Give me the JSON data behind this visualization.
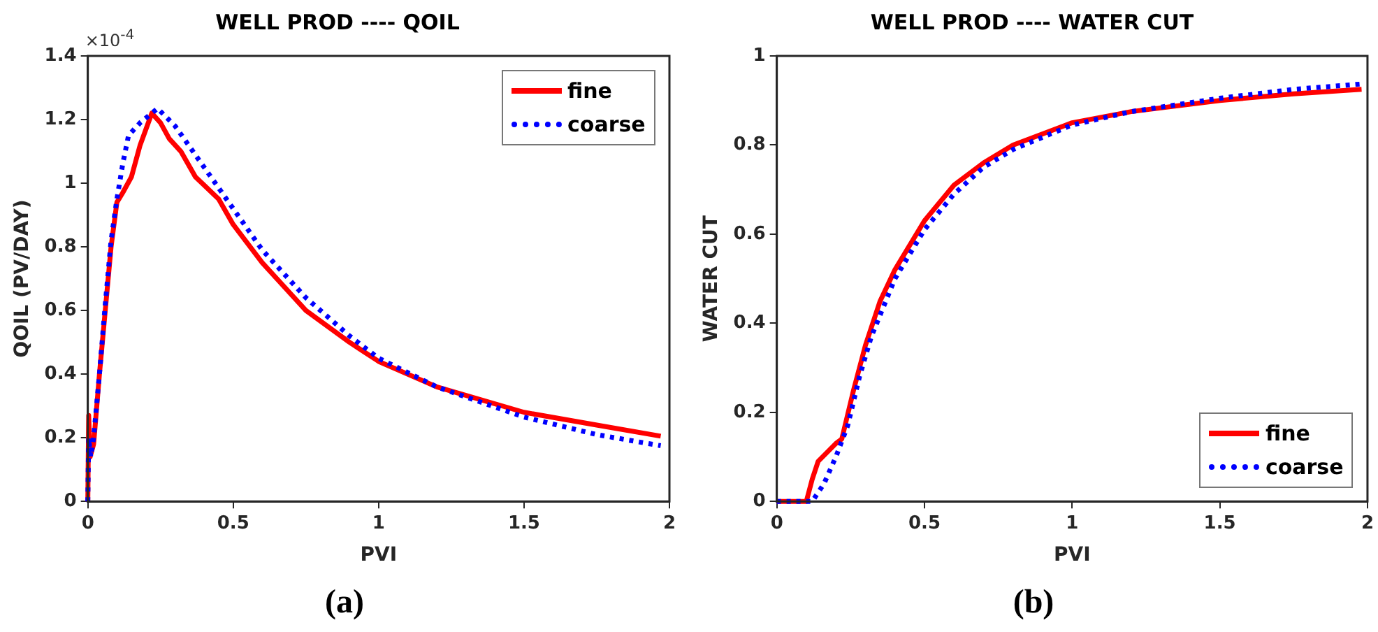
{
  "chart_data": [
    {
      "type": "line",
      "title": "WELL PROD ---- QOIL",
      "xlabel": "PVI",
      "ylabel": "QOIL (PV/DAY)",
      "annotations": [
        "×10$^{-4}$",
        "(a)"
      ],
      "xlim": [
        0,
        2
      ],
      "xticks": [
        0,
        0.5,
        1,
        1.5,
        2
      ],
      "ylim": [
        0,
        1.4
      ],
      "yticks": [
        0,
        0.2,
        0.4,
        0.6,
        0.8,
        1,
        1.2,
        1.4
      ],
      "grid": false,
      "legend": "top right",
      "marker": "none",
      "series": [
        {
          "name": "fine",
          "color": "#ff0000",
          "line_style": "solid",
          "x": [
            0,
            0.003,
            0.008,
            0.02,
            0.04,
            0.06,
            0.08,
            0.1,
            0.12,
            0.15,
            0.18,
            0.22,
            0.25,
            0.28,
            0.32,
            0.37,
            0.45,
            0.5,
            0.6,
            0.75,
            0.9,
            1.0,
            1.2,
            1.5,
            1.75,
            1.97
          ],
          "values": [
            0,
            0.27,
            0.14,
            0.18,
            0.4,
            0.6,
            0.8,
            0.94,
            0.97,
            1.02,
            1.12,
            1.22,
            1.19,
            1.14,
            1.1,
            1.02,
            0.95,
            0.87,
            0.75,
            0.6,
            0.5,
            0.44,
            0.36,
            0.28,
            0.24,
            0.205
          ]
        },
        {
          "name": "coarse",
          "color": "#0000ff",
          "line_style": "dotted",
          "x": [
            0,
            0.003,
            0.01,
            0.02,
            0.04,
            0.06,
            0.08,
            0.1,
            0.12,
            0.14,
            0.18,
            0.24,
            0.3,
            0.4,
            0.5,
            0.6,
            0.75,
            0.9,
            1.0,
            1.2,
            1.5,
            1.75,
            1.97
          ],
          "values": [
            0,
            0.2,
            0.14,
            0.2,
            0.4,
            0.62,
            0.82,
            0.95,
            1.06,
            1.15,
            1.19,
            1.235,
            1.18,
            1.05,
            0.92,
            0.79,
            0.64,
            0.52,
            0.45,
            0.36,
            0.265,
            0.21,
            0.175
          ]
        }
      ]
    },
    {
      "type": "line",
      "title": "WELL PROD ---- WATER CUT",
      "xlabel": "PVI",
      "ylabel": "WATER CUT",
      "annotations": [
        "(b)"
      ],
      "xlim": [
        0,
        2
      ],
      "xticks": [
        0,
        0.5,
        1,
        1.5,
        2
      ],
      "ylim": [
        0,
        1
      ],
      "yticks": [
        0,
        0.2,
        0.4,
        0.6,
        0.8,
        1
      ],
      "grid": false,
      "legend": "bottom right",
      "marker": "none",
      "series": [
        {
          "name": "fine",
          "color": "#ff0000",
          "line_style": "solid",
          "x": [
            0,
            0.1,
            0.12,
            0.14,
            0.2,
            0.22,
            0.26,
            0.3,
            0.35,
            0.4,
            0.5,
            0.6,
            0.7,
            0.8,
            1.0,
            1.2,
            1.5,
            1.75,
            1.98
          ],
          "values": [
            0,
            0,
            0.05,
            0.09,
            0.13,
            0.14,
            0.25,
            0.35,
            0.45,
            0.52,
            0.63,
            0.71,
            0.76,
            0.8,
            0.85,
            0.875,
            0.9,
            0.915,
            0.925
          ]
        },
        {
          "name": "coarse",
          "color": "#0000ff",
          "line_style": "dotted",
          "x": [
            0,
            0.12,
            0.16,
            0.2,
            0.24,
            0.28,
            0.32,
            0.4,
            0.5,
            0.6,
            0.7,
            0.8,
            1.0,
            1.2,
            1.5,
            1.75,
            1.98
          ],
          "values": [
            0,
            0,
            0.04,
            0.1,
            0.17,
            0.28,
            0.37,
            0.5,
            0.61,
            0.69,
            0.75,
            0.79,
            0.845,
            0.875,
            0.905,
            0.925,
            0.937
          ]
        }
      ]
    }
  ]
}
